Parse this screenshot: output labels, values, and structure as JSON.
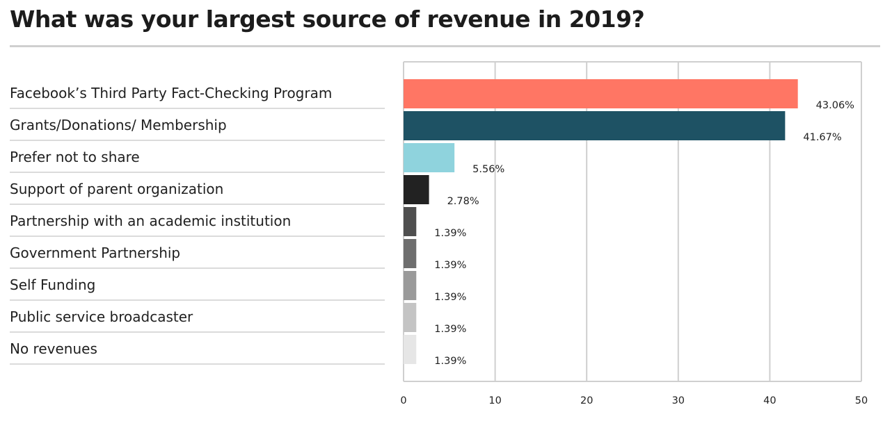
{
  "page": {
    "title": "What was your largest source of revenue in 2019?"
  },
  "chart_data": {
    "type": "bar",
    "orientation": "horizontal",
    "title": "What was your largest source of revenue in 2019?",
    "xlabel": "",
    "ylabel": "",
    "xlim": [
      0,
      50
    ],
    "ticks": [
      0,
      10,
      20,
      30,
      40,
      50
    ],
    "grid": true,
    "legend": "none",
    "categories": [
      "Facebook’s Third Party Fact-Checking Program",
      "Grants/Donations/ Membership",
      "Prefer not to share",
      "Support of parent organization",
      "Partnership with an academic institution",
      "Government Partnership",
      "Self Funding",
      "Public service broadcaster",
      "No revenues"
    ],
    "values": [
      43.06,
      41.67,
      5.56,
      2.78,
      1.39,
      1.39,
      1.39,
      1.39,
      1.39
    ],
    "value_labels": [
      "43.06%",
      "41.67%",
      "5.56%",
      "2.78%",
      "1.39%",
      "1.39%",
      "1.39%",
      "1.39%",
      "1.39%"
    ],
    "colors": [
      "#ff7664",
      "#1e5264",
      "#8fd3dd",
      "#222222",
      "#4f4f4f",
      "#6e6e6e",
      "#9a9a9a",
      "#c4c4c4",
      "#e6e6e6"
    ]
  }
}
